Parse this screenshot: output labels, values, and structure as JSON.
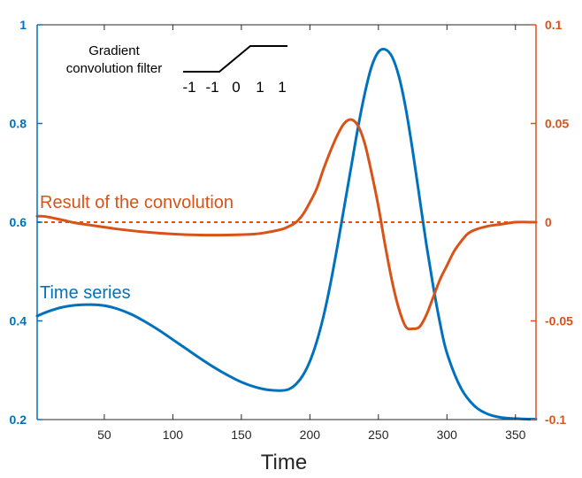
{
  "chart_data": {
    "type": "line",
    "xlabel": "Time",
    "xlim": [
      1,
      365
    ],
    "xticks": [
      50,
      100,
      150,
      200,
      250,
      300,
      350
    ],
    "left_axis": {
      "ylim": [
        0.2,
        1
      ],
      "ticks": [
        "0.2",
        "0.4",
        "0.6",
        "0.8",
        "1"
      ],
      "color": "#0072BD"
    },
    "right_axis": {
      "ylim": [
        -0.1,
        0.1
      ],
      "ticks": [
        "-0.1",
        "-0.05",
        "0",
        "0.05",
        "0.1"
      ],
      "color": "#D95319"
    },
    "series": [
      {
        "axis": "left",
        "color": "#0072BD",
        "x": [
          1,
          10,
          20,
          30,
          40,
          50,
          60,
          70,
          80,
          90,
          100,
          110,
          120,
          130,
          140,
          150,
          160,
          170,
          180,
          185,
          190,
          195,
          200,
          205,
          210,
          215,
          220,
          225,
          230,
          235,
          240,
          245,
          250,
          255,
          260,
          265,
          270,
          275,
          280,
          285,
          290,
          295,
          300,
          310,
          320,
          330,
          340,
          350,
          360,
          365
        ],
        "y": [
          0.41,
          0.42,
          0.428,
          0.432,
          0.433,
          0.431,
          0.424,
          0.413,
          0.398,
          0.381,
          0.362,
          0.343,
          0.324,
          0.306,
          0.29,
          0.276,
          0.266,
          0.26,
          0.259,
          0.262,
          0.272,
          0.29,
          0.318,
          0.358,
          0.41,
          0.475,
          0.55,
          0.63,
          0.71,
          0.79,
          0.86,
          0.915,
          0.945,
          0.95,
          0.935,
          0.895,
          0.83,
          0.745,
          0.65,
          0.555,
          0.47,
          0.395,
          0.335,
          0.265,
          0.228,
          0.211,
          0.204,
          0.202,
          0.201,
          0.201
        ]
      },
      {
        "axis": "right",
        "color": "#D95319",
        "x": [
          1,
          5,
          10,
          20,
          30,
          40,
          50,
          60,
          80,
          100,
          120,
          140,
          160,
          170,
          180,
          185,
          190,
          195,
          200,
          205,
          210,
          215,
          220,
          225,
          230,
          235,
          240,
          245,
          250,
          255,
          260,
          265,
          270,
          275,
          280,
          285,
          290,
          295,
          300,
          305,
          310,
          315,
          320,
          330,
          340,
          350,
          360,
          365
        ],
        "y": [
          0.003,
          0.003,
          0.0025,
          0.001,
          -0.0005,
          -0.0015,
          -0.0025,
          -0.0035,
          -0.005,
          -0.006,
          -0.0065,
          -0.0065,
          -0.006,
          -0.005,
          -0.0035,
          -0.002,
          0.0,
          0.004,
          0.01,
          0.017,
          0.027,
          0.036,
          0.044,
          0.05,
          0.052,
          0.049,
          0.04,
          0.025,
          0.008,
          -0.012,
          -0.03,
          -0.044,
          -0.053,
          -0.054,
          -0.053,
          -0.047,
          -0.038,
          -0.029,
          -0.022,
          -0.015,
          -0.01,
          -0.006,
          -0.004,
          -0.002,
          -0.001,
          0.0,
          0.0,
          0.0
        ]
      }
    ],
    "annotations": {
      "result_label": "Result of the convolution",
      "series_label": "Time series",
      "filter_title_line1": "Gradient",
      "filter_title_line2": "convolution filter",
      "filter_values": [
        "-1",
        "-1",
        "0",
        "1",
        "1"
      ]
    }
  }
}
